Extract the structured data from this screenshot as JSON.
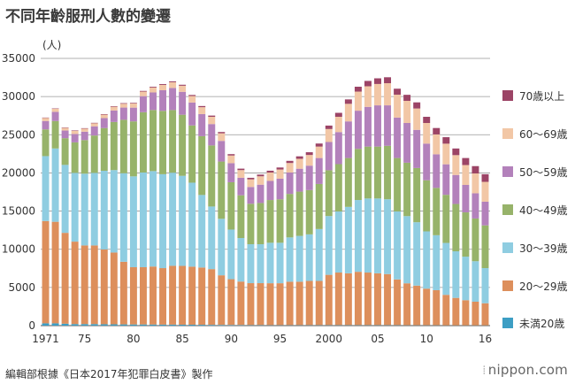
{
  "title": "不同年齡服刑人數的變遷",
  "source": "編輯部根據《日本2017年犯罪白皮書》製作",
  "brand": "nippon.com",
  "chart_data": {
    "type": "bar",
    "stacked": true,
    "ylabel": "(人)",
    "ylim": [
      0,
      35000
    ],
    "yticks": [
      0,
      5000,
      10000,
      15000,
      20000,
      25000,
      30000,
      35000
    ],
    "grid": true,
    "legend_position": "right",
    "x": [
      1971,
      1972,
      1973,
      1974,
      1975,
      1976,
      1977,
      1978,
      1979,
      1980,
      1981,
      1982,
      1983,
      1984,
      1985,
      1986,
      1987,
      1988,
      1989,
      1990,
      1991,
      1992,
      1993,
      1994,
      1995,
      1996,
      1997,
      1998,
      1999,
      2000,
      2001,
      2002,
      2003,
      2004,
      2005,
      2006,
      2007,
      2008,
      2009,
      2010,
      2011,
      2012,
      2013,
      2014,
      2015,
      2016
    ],
    "xtick_labels": [
      {
        "x": 1971,
        "label": "1971"
      },
      {
        "x": 1975,
        "label": "75"
      },
      {
        "x": 1980,
        "label": "80"
      },
      {
        "x": 1985,
        "label": "85"
      },
      {
        "x": 1990,
        "label": "90"
      },
      {
        "x": 1995,
        "label": "95"
      },
      {
        "x": 2000,
        "label": "2000"
      },
      {
        "x": 2005,
        "label": "05"
      },
      {
        "x": 2010,
        "label": "10"
      },
      {
        "x": 2016,
        "label": "16"
      }
    ],
    "series": [
      {
        "name": "未満20歳",
        "color": "#3d9ec4",
        "values": [
          300,
          300,
          250,
          200,
          200,
          200,
          180,
          170,
          160,
          150,
          150,
          140,
          130,
          130,
          120,
          120,
          110,
          100,
          90,
          80,
          70,
          60,
          60,
          50,
          50,
          50,
          50,
          50,
          50,
          50,
          50,
          50,
          50,
          50,
          50,
          50,
          50,
          40,
          40,
          40,
          40,
          30,
          30,
          30,
          30,
          30
        ]
      },
      {
        "name": "20～29歳",
        "color": "#dd8f5c",
        "values": [
          13400,
          13300,
          11900,
          10800,
          10300,
          10300,
          9800,
          9400,
          8200,
          7500,
          7500,
          7600,
          7400,
          7700,
          7700,
          7600,
          7500,
          7300,
          6500,
          6000,
          5700,
          5500,
          5500,
          5500,
          5500,
          5700,
          5700,
          5800,
          5800,
          6600,
          6900,
          6800,
          7000,
          6900,
          6800,
          6700,
          6000,
          5500,
          5200,
          4800,
          4600,
          4000,
          3600,
          3300,
          3100,
          2900
        ]
      },
      {
        "name": "30～39歳",
        "color": "#8fcde1",
        "values": [
          8500,
          9600,
          8900,
          9000,
          9400,
          9500,
          10300,
          10800,
          11600,
          11900,
          12400,
          12500,
          12300,
          12200,
          11800,
          11000,
          9500,
          8200,
          7400,
          6500,
          5700,
          5100,
          5100,
          5300,
          5300,
          5800,
          6000,
          6100,
          6800,
          7700,
          8000,
          8700,
          9400,
          9700,
          9800,
          9800,
          8900,
          8800,
          8300,
          7500,
          7200,
          6800,
          6100,
          5700,
          5300,
          4600
        ]
      },
      {
        "name": "40～49歳",
        "color": "#97b36a",
        "values": [
          3500,
          3600,
          3500,
          4000,
          4400,
          4900,
          5600,
          6300,
          7000,
          7200,
          7900,
          8000,
          8300,
          8200,
          8000,
          7500,
          7700,
          8000,
          7500,
          6200,
          5600,
          5300,
          5400,
          5600,
          5700,
          5700,
          5800,
          5800,
          5900,
          6000,
          6200,
          6400,
          6700,
          6800,
          6800,
          7000,
          7000,
          7000,
          7100,
          6700,
          6200,
          6300,
          6200,
          5800,
          5600,
          5600
        ]
      },
      {
        "name": "50～59歳",
        "color": "#b381bb",
        "values": [
          1100,
          1200,
          1000,
          1100,
          1100,
          1200,
          1300,
          1500,
          1600,
          1800,
          2100,
          2300,
          2700,
          2900,
          3000,
          3000,
          2900,
          2800,
          2700,
          2500,
          2300,
          2200,
          2400,
          2500,
          2700,
          2800,
          3000,
          3200,
          3400,
          3700,
          4200,
          4800,
          5000,
          5200,
          5400,
          5300,
          5300,
          5200,
          5000,
          4800,
          4400,
          4000,
          3800,
          3600,
          3300,
          3100
        ]
      },
      {
        "name": "60～69歳",
        "color": "#f2c7a6",
        "values": [
          400,
          400,
          350,
          400,
          400,
          400,
          450,
          500,
          500,
          550,
          600,
          650,
          700,
          750,
          800,
          850,
          900,
          950,
          1000,
          1000,
          1000,
          1000,
          1100,
          1100,
          1200,
          1250,
          1300,
          1400,
          1500,
          1700,
          2000,
          2300,
          2500,
          2700,
          2800,
          2900,
          3000,
          2900,
          2800,
          2700,
          2600,
          2700,
          2600,
          2600,
          2600,
          2600
        ]
      },
      {
        "name": "70歳以上",
        "color": "#9c4466",
        "values": [
          50,
          50,
          50,
          60,
          60,
          60,
          70,
          70,
          80,
          80,
          90,
          100,
          110,
          120,
          130,
          140,
          150,
          160,
          170,
          180,
          190,
          200,
          220,
          240,
          260,
          280,
          320,
          360,
          400,
          450,
          520,
          580,
          640,
          700,
          740,
          780,
          780,
          790,
          800,
          810,
          840,
          850,
          870,
          920,
          960,
          1000
        ]
      }
    ],
    "legend_order": [
      "70歳以上",
      "60～69歳",
      "50～59歳",
      "40～49歳",
      "30～39歳",
      "20～29歳",
      "未満20歳"
    ]
  }
}
